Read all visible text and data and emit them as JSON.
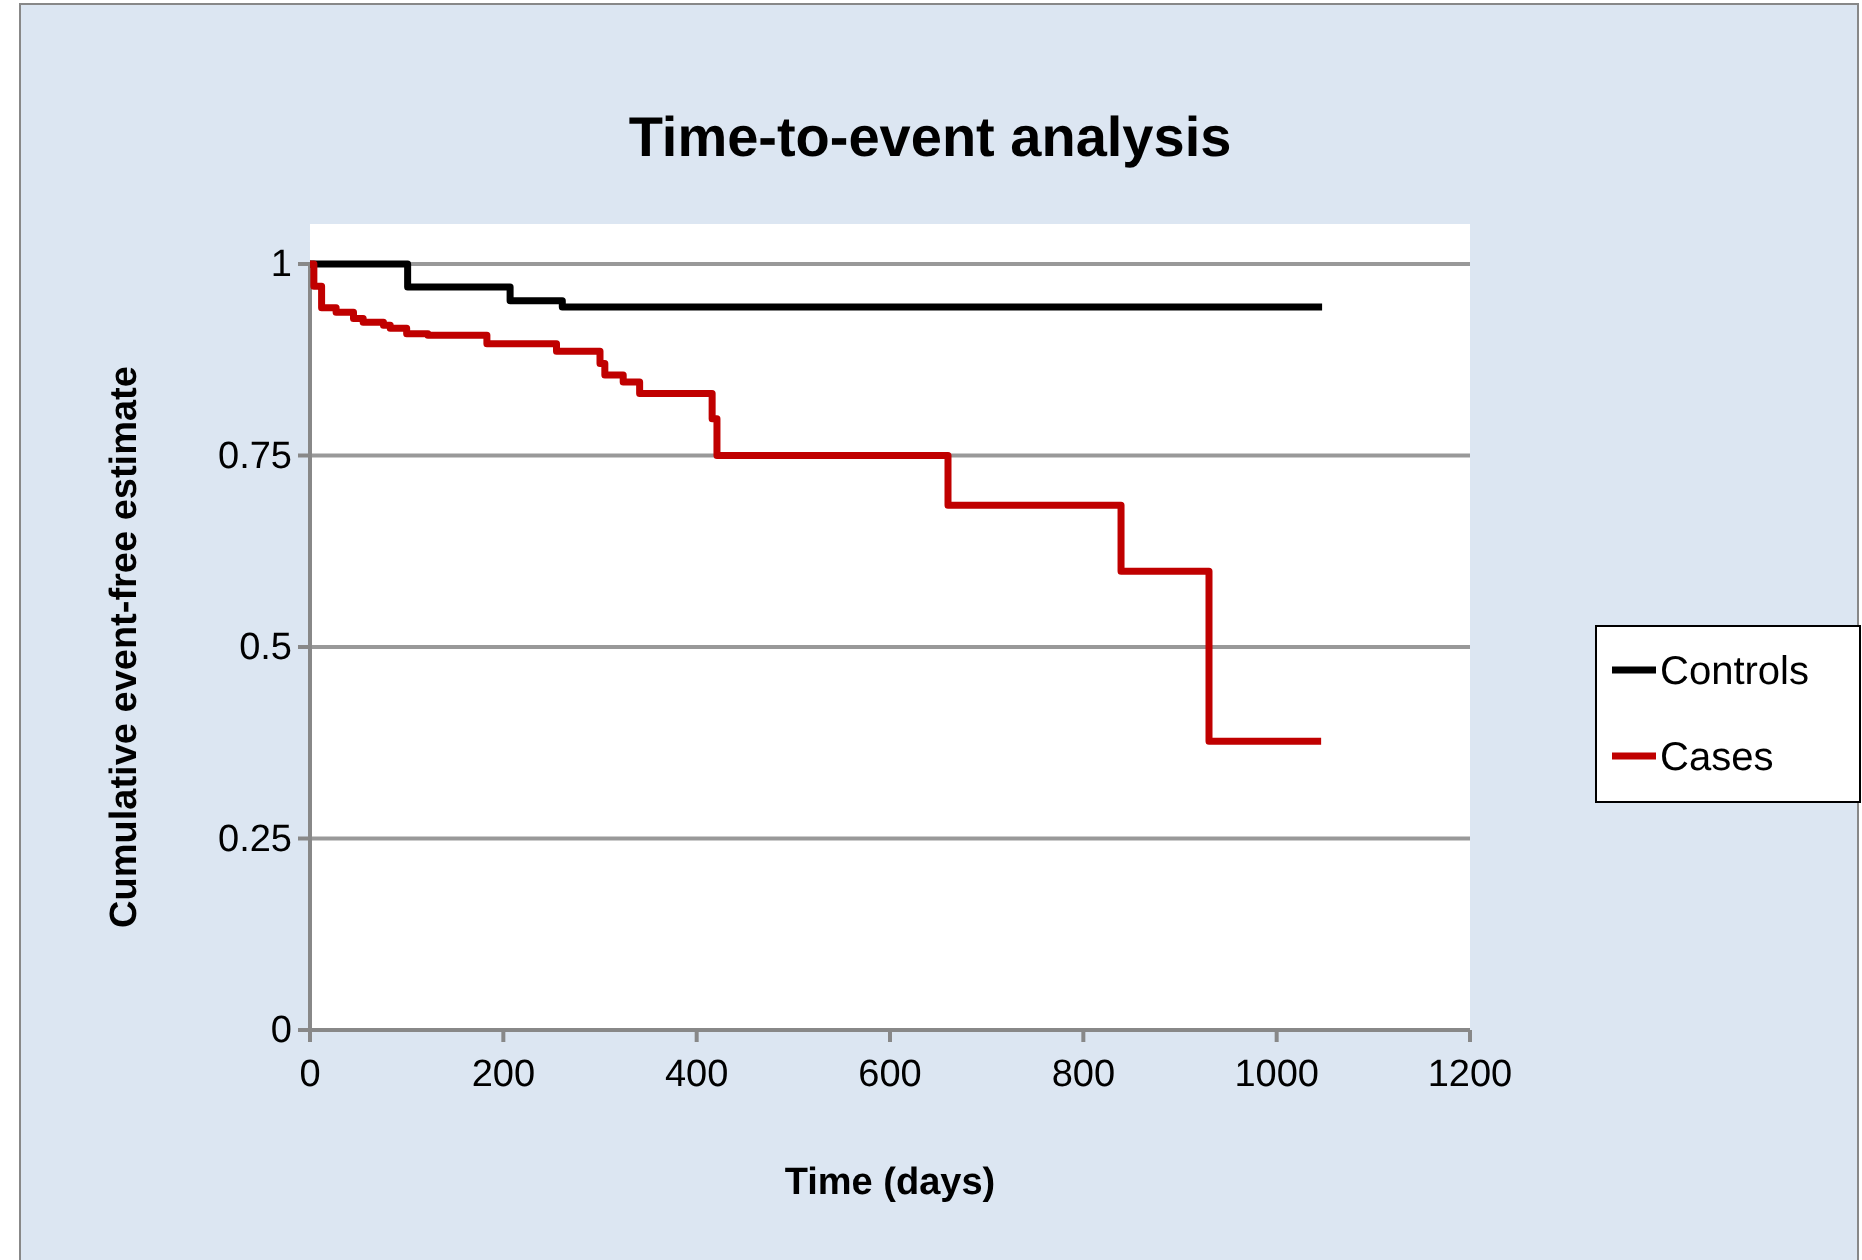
{
  "chart_data": {
    "type": "step",
    "title": "Time-to-event analysis",
    "xlabel": "Time (days)",
    "ylabel": "Cumulative event-free estimate",
    "xlim": [
      0,
      1200
    ],
    "xticks": [
      0,
      200,
      400,
      600,
      800,
      1000,
      1200
    ],
    "ylim": [
      0,
      1
    ],
    "yticks": [
      0,
      0.25,
      0.5,
      0.75,
      1
    ],
    "grid": "y",
    "legend": "right",
    "series": [
      {
        "name": "Controls",
        "color": "#000000",
        "x": [
          0,
          101,
          207,
          261,
          1047
        ],
        "values": [
          1,
          0.97,
          0.952,
          0.944,
          0.944
        ]
      },
      {
        "name": "Cases",
        "color": "#c00000",
        "x": [
          0,
          4,
          12,
          27,
          45,
          55,
          76,
          83,
          100,
          122,
          183,
          255,
          300,
          305,
          324,
          341,
          416,
          421,
          660,
          839,
          930,
          1046
        ],
        "values": [
          1,
          0.971,
          0.943,
          0.937,
          0.929,
          0.924,
          0.92,
          0.916,
          0.909,
          0.907,
          0.896,
          0.886,
          0.87,
          0.855,
          0.846,
          0.831,
          0.798,
          0.75,
          0.685,
          0.599,
          0.377,
          0.377
        ]
      }
    ]
  }
}
